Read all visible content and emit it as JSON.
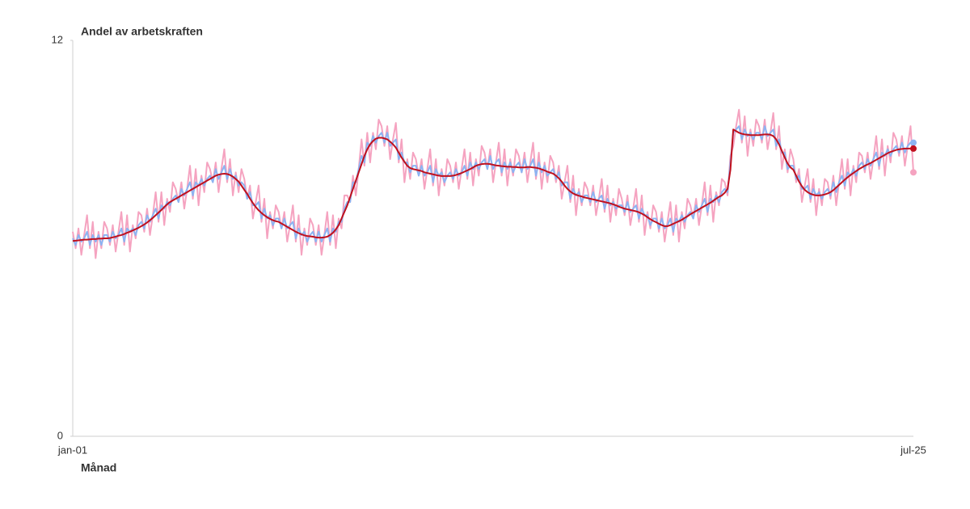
{
  "chart_data": {
    "type": "line",
    "y_title": "Andel av arbetskraften",
    "x_title": "Månad",
    "ylim": [
      0,
      12
    ],
    "yticks": [
      0,
      12
    ],
    "grid": false,
    "end_markers": true,
    "categories": [
      "jan-01",
      null,
      null,
      null,
      null,
      null,
      null,
      null,
      null,
      null,
      null,
      null,
      null,
      null,
      null,
      null,
      null,
      null,
      null,
      null,
      null,
      null,
      null,
      null,
      null,
      null,
      null,
      null,
      null,
      null,
      null,
      null,
      null,
      null,
      null,
      null,
      null,
      null,
      null,
      null,
      null,
      null,
      null,
      null,
      null,
      null,
      null,
      null,
      null,
      null,
      null,
      null,
      null,
      null,
      null,
      null,
      null,
      null,
      null,
      null,
      null,
      null,
      null,
      null,
      null,
      null,
      null,
      null,
      null,
      null,
      null,
      null,
      null,
      null,
      null,
      null,
      null,
      null,
      null,
      null,
      null,
      null,
      null,
      null,
      null,
      null,
      null,
      null,
      null,
      null,
      null,
      null,
      null,
      null,
      null,
      null,
      null,
      null,
      null,
      null,
      null,
      null,
      null,
      null,
      null,
      null,
      null,
      null,
      null,
      null,
      null,
      null,
      null,
      null,
      null,
      null,
      null,
      null,
      null,
      null,
      null,
      null,
      null,
      null,
      null,
      null,
      null,
      null,
      null,
      null,
      null,
      null,
      null,
      null,
      null,
      null,
      null,
      null,
      null,
      null,
      null,
      null,
      null,
      null,
      null,
      null,
      null,
      null,
      null,
      null,
      null,
      null,
      null,
      null,
      null,
      null,
      null,
      null,
      null,
      null,
      null,
      null,
      null,
      null,
      null,
      null,
      null,
      null,
      null,
      null,
      null,
      null,
      null,
      null,
      null,
      null,
      null,
      null,
      null,
      null,
      null,
      null,
      null,
      null,
      null,
      null,
      null,
      null,
      null,
      null,
      null,
      null,
      null,
      null,
      null,
      null,
      null,
      null,
      null,
      null,
      null,
      null,
      null,
      null,
      null,
      null,
      null,
      null,
      null,
      null,
      null,
      null,
      null,
      null,
      null,
      null,
      null,
      null,
      null,
      null,
      null,
      null,
      null,
      null,
      null,
      null,
      null,
      null,
      null,
      null,
      null,
      null,
      null,
      null,
      null,
      null,
      null,
      null,
      null,
      null,
      null,
      null,
      null,
      null,
      null,
      null,
      null,
      null,
      null,
      null,
      null,
      null,
      null,
      null,
      null,
      null,
      null,
      null,
      null,
      null,
      null,
      null,
      null,
      null,
      null,
      null,
      null,
      null,
      null,
      null,
      null,
      null,
      null,
      null,
      null,
      null,
      null,
      null,
      null,
      null,
      null,
      null,
      null,
      null,
      null,
      null,
      null,
      null,
      null,
      null,
      null,
      null,
      null,
      null,
      "jul-25"
    ],
    "series": [
      {
        "color": "#f5a3c0",
        "width": 2,
        "values": [
          6.2,
          5.7,
          6.3,
          5.5,
          6.1,
          6.7,
          5.7,
          6.5,
          5.4,
          6.2,
          5.7,
          6.5,
          6.3,
          5.8,
          6.4,
          5.6,
          6.2,
          6.8,
          5.8,
          6.7,
          5.6,
          6.4,
          6.0,
          6.8,
          6.7,
          6.2,
          6.9,
          6.1,
          6.7,
          7.4,
          6.5,
          7.4,
          6.4,
          7.2,
          6.8,
          7.7,
          7.5,
          7.1,
          7.7,
          6.9,
          7.5,
          8.2,
          7.2,
          8.1,
          7.0,
          7.9,
          7.4,
          8.3,
          8.1,
          7.7,
          8.3,
          7.4,
          8.1,
          8.7,
          7.7,
          8.4,
          7.3,
          8.0,
          7.4,
          8.1,
          7.8,
          7.2,
          7.6,
          6.6,
          7.1,
          7.6,
          6.5,
          7.2,
          6.0,
          6.8,
          6.3,
          7.0,
          6.8,
          6.3,
          6.8,
          5.9,
          6.4,
          7.0,
          5.9,
          6.7,
          5.5,
          6.3,
          5.8,
          6.6,
          6.4,
          5.8,
          6.4,
          5.5,
          6.1,
          6.8,
          5.8,
          6.7,
          5.7,
          6.6,
          6.3,
          7.3,
          7.3,
          7.1,
          7.9,
          7.3,
          8.1,
          9.0,
          8.2,
          9.2,
          8.3,
          9.2,
          8.7,
          9.6,
          9.4,
          8.8,
          9.4,
          8.4,
          9.0,
          9.5,
          8.3,
          9.0,
          7.7,
          8.4,
          7.8,
          8.6,
          8.4,
          7.9,
          8.4,
          7.5,
          8.1,
          8.7,
          7.6,
          8.4,
          7.3,
          8.1,
          7.6,
          8.4,
          8.2,
          7.7,
          8.3,
          7.5,
          8.1,
          8.7,
          7.8,
          8.6,
          7.6,
          8.4,
          7.9,
          8.8,
          8.6,
          8.1,
          8.7,
          7.7,
          8.3,
          8.9,
          7.9,
          8.7,
          7.6,
          8.4,
          7.9,
          8.7,
          8.5,
          8.0,
          8.6,
          7.7,
          8.3,
          8.9,
          7.8,
          8.6,
          7.5,
          8.3,
          7.7,
          8.5,
          8.3,
          7.7,
          8.2,
          7.2,
          7.7,
          8.2,
          7.1,
          7.9,
          6.7,
          7.5,
          7.0,
          7.7,
          7.5,
          7.0,
          7.6,
          6.7,
          7.2,
          7.8,
          6.8,
          7.6,
          6.5,
          7.2,
          6.7,
          7.5,
          7.2,
          6.7,
          7.3,
          6.4,
          6.9,
          7.5,
          6.5,
          7.3,
          6.1,
          6.8,
          6.3,
          7.0,
          6.8,
          6.2,
          6.8,
          5.9,
          6.5,
          7.1,
          6.1,
          7.0,
          5.9,
          6.8,
          6.3,
          7.2,
          7.0,
          6.6,
          7.2,
          6.4,
          7.0,
          7.7,
          6.7,
          7.6,
          6.5,
          7.4,
          7.0,
          7.8,
          7.7,
          7.3,
          8.5,
          8.8,
          9.4,
          9.9,
          8.9,
          9.7,
          8.5,
          9.3,
          8.8,
          9.6,
          9.4,
          8.9,
          9.6,
          8.7,
          9.2,
          9.8,
          8.7,
          9.4,
          8.1,
          8.7,
          8.0,
          8.7,
          8.4,
          7.7,
          8.1,
          7.1,
          7.6,
          8.1,
          7.1,
          7.8,
          6.7,
          7.5,
          7.0,
          7.8,
          7.7,
          7.2,
          7.9,
          7.0,
          7.7,
          8.4,
          7.5,
          8.4,
          7.3,
          8.2,
          7.7,
          8.6,
          8.5,
          8.0,
          8.6,
          7.8,
          8.4,
          9.1,
          8.1,
          9.0,
          7.9,
          8.8,
          8.3,
          9.2,
          9.0,
          8.5,
          9.1,
          8.2,
          8.8,
          9.4,
          8.0
        ]
      },
      {
        "color": "#8cb4f2",
        "width": 2,
        "values": [
          6.0,
          5.8,
          6.1,
          5.9,
          6.0,
          6.2,
          5.8,
          6.1,
          5.9,
          6.1,
          5.8,
          6.1,
          6.1,
          5.9,
          6.2,
          6.0,
          6.1,
          6.3,
          5.9,
          6.3,
          6.2,
          6.3,
          6.1,
          6.4,
          6.5,
          6.3,
          6.7,
          6.5,
          6.7,
          6.9,
          6.6,
          7.0,
          6.9,
          7.1,
          7.0,
          7.2,
          7.3,
          7.1,
          7.5,
          7.3,
          7.5,
          7.7,
          7.3,
          7.7,
          7.6,
          7.8,
          7.6,
          7.8,
          7.9,
          7.7,
          8.1,
          7.8,
          8.0,
          8.2,
          7.8,
          8.1,
          7.8,
          7.9,
          7.6,
          7.7,
          7.6,
          7.2,
          7.4,
          7.0,
          7.0,
          7.1,
          6.6,
          6.9,
          6.6,
          6.7,
          6.4,
          6.6,
          6.6,
          6.3,
          6.6,
          6.3,
          6.4,
          6.5,
          6.0,
          6.3,
          6.1,
          6.2,
          5.9,
          6.1,
          6.2,
          5.9,
          6.2,
          5.9,
          6.1,
          6.3,
          5.9,
          6.3,
          6.2,
          6.5,
          6.5,
          6.9,
          7.1,
          7.1,
          7.7,
          7.7,
          8.1,
          8.5,
          8.3,
          8.9,
          8.8,
          9.1,
          8.9,
          9.1,
          9.2,
          8.9,
          9.2,
          8.8,
          8.9,
          9.0,
          8.4,
          8.6,
          8.3,
          8.3,
          8.0,
          8.2,
          8.2,
          7.9,
          8.2,
          7.9,
          8.0,
          8.2,
          7.7,
          8.1,
          7.9,
          8.0,
          7.7,
          7.9,
          8.0,
          7.8,
          8.1,
          7.9,
          8.0,
          8.2,
          7.9,
          8.3,
          8.1,
          8.3,
          8.1,
          8.3,
          8.4,
          8.1,
          8.5,
          8.1,
          8.3,
          8.4,
          8.0,
          8.3,
          8.1,
          8.3,
          8.0,
          8.2,
          8.3,
          8.0,
          8.4,
          8.1,
          8.2,
          8.4,
          7.9,
          8.3,
          8.0,
          8.2,
          7.9,
          8.0,
          8.1,
          7.8,
          8.0,
          7.6,
          7.7,
          7.7,
          7.2,
          7.5,
          7.3,
          7.4,
          7.1,
          7.3,
          7.3,
          7.1,
          7.4,
          7.1,
          7.2,
          7.3,
          6.9,
          7.2,
          7.0,
          7.1,
          6.9,
          7.0,
          7.0,
          6.8,
          7.1,
          6.8,
          6.9,
          7.0,
          6.6,
          6.9,
          6.7,
          6.7,
          6.4,
          6.6,
          6.6,
          6.3,
          6.6,
          6.3,
          6.4,
          6.6,
          6.2,
          6.6,
          6.5,
          6.7,
          6.5,
          6.7,
          6.8,
          6.6,
          7.0,
          6.8,
          7.0,
          7.2,
          6.8,
          7.2,
          7.1,
          7.3,
          7.1,
          7.4,
          7.5,
          7.4,
          8.3,
          9.2,
          9.3,
          9.4,
          9.0,
          9.3,
          9.1,
          9.2,
          9.0,
          9.2,
          9.2,
          9.0,
          9.4,
          9.1,
          9.2,
          9.3,
          8.8,
          9.0,
          8.6,
          8.6,
          8.1,
          8.2,
          8.2,
          7.8,
          7.9,
          7.5,
          7.5,
          7.6,
          7.2,
          7.5,
          7.3,
          7.4,
          7.2,
          7.4,
          7.5,
          7.3,
          7.7,
          7.4,
          7.7,
          7.9,
          7.6,
          8.0,
          7.9,
          8.1,
          7.9,
          8.2,
          8.3,
          8.1,
          8.4,
          8.2,
          8.4,
          8.6,
          8.2,
          8.6,
          8.5,
          8.7,
          8.5,
          8.7,
          8.8,
          8.6,
          8.9,
          8.6,
          8.8,
          8.9,
          8.9
        ]
      },
      {
        "color": "#c0101e",
        "width": 2,
        "values": [
          5.92,
          5.93,
          5.94,
          5.95,
          5.96,
          5.96,
          5.97,
          5.98,
          5.98,
          5.99,
          5.99,
          6.0,
          6.0,
          6.01,
          6.03,
          6.05,
          6.08,
          6.1,
          6.13,
          6.17,
          6.2,
          6.24,
          6.28,
          6.32,
          6.37,
          6.42,
          6.48,
          6.55,
          6.62,
          6.7,
          6.78,
          6.86,
          6.95,
          7.03,
          7.1,
          7.15,
          7.2,
          7.25,
          7.3,
          7.35,
          7.4,
          7.45,
          7.5,
          7.55,
          7.6,
          7.65,
          7.7,
          7.75,
          7.8,
          7.85,
          7.9,
          7.93,
          7.95,
          7.96,
          7.95,
          7.92,
          7.87,
          7.8,
          7.72,
          7.6,
          7.47,
          7.35,
          7.2,
          7.07,
          6.95,
          6.85,
          6.77,
          6.7,
          6.64,
          6.59,
          6.55,
          6.52,
          6.5,
          6.45,
          6.4,
          6.35,
          6.3,
          6.25,
          6.2,
          6.16,
          6.12,
          6.09,
          6.07,
          6.06,
          6.05,
          6.03,
          6.02,
          6.02,
          6.03,
          6.05,
          6.1,
          6.17,
          6.27,
          6.4,
          6.6,
          6.8,
          7.0,
          7.25,
          7.5,
          7.75,
          8.0,
          8.25,
          8.5,
          8.7,
          8.85,
          8.95,
          9.02,
          9.05,
          9.05,
          9.03,
          9.0,
          8.93,
          8.85,
          8.75,
          8.6,
          8.45,
          8.32,
          8.2,
          8.13,
          8.1,
          8.08,
          8.06,
          8.04,
          8.0,
          7.98,
          7.96,
          7.94,
          7.92,
          7.9,
          7.89,
          7.89,
          7.89,
          7.89,
          7.9,
          7.92,
          7.95,
          7.98,
          8.02,
          8.06,
          8.1,
          8.15,
          8.2,
          8.23,
          8.25,
          8.26,
          8.26,
          8.25,
          8.23,
          8.21,
          8.2,
          8.19,
          8.18,
          8.17,
          8.17,
          8.16,
          8.16,
          8.15,
          8.15,
          8.15,
          8.16,
          8.16,
          8.15,
          8.14,
          8.12,
          8.09,
          8.06,
          8.02,
          7.99,
          7.96,
          7.9,
          7.82,
          7.72,
          7.6,
          7.5,
          7.42,
          7.36,
          7.32,
          7.29,
          7.27,
          7.24,
          7.22,
          7.2,
          7.18,
          7.16,
          7.14,
          7.12,
          7.1,
          7.08,
          7.06,
          7.03,
          7.0,
          6.96,
          6.93,
          6.9,
          6.88,
          6.86,
          6.84,
          6.82,
          6.79,
          6.75,
          6.7,
          6.64,
          6.58,
          6.53,
          6.49,
          6.44,
          6.4,
          6.37,
          6.37,
          6.4,
          6.44,
          6.48,
          6.52,
          6.56,
          6.62,
          6.67,
          6.73,
          6.78,
          6.83,
          6.88,
          6.93,
          6.98,
          7.03,
          7.08,
          7.14,
          7.2,
          7.26,
          7.3,
          7.38,
          7.5,
          8.08,
          9.3,
          9.25,
          9.2,
          9.17,
          9.15,
          9.14,
          9.13,
          9.13,
          9.13,
          9.13,
          9.14,
          9.15,
          9.15,
          9.14,
          9.1,
          9.0,
          8.85,
          8.65,
          8.45,
          8.27,
          8.15,
          8.08,
          7.9,
          7.72,
          7.58,
          7.47,
          7.4,
          7.35,
          7.32,
          7.3,
          7.3,
          7.31,
          7.33,
          7.36,
          7.4,
          7.46,
          7.54,
          7.62,
          7.7,
          7.78,
          7.85,
          7.92,
          7.98,
          8.04,
          8.1,
          8.15,
          8.2,
          8.24,
          8.28,
          8.33,
          8.38,
          8.43,
          8.48,
          8.53,
          8.58,
          8.62,
          8.65,
          8.68,
          8.7,
          8.71,
          8.72,
          8.72,
          8.72,
          8.72
        ]
      }
    ]
  }
}
